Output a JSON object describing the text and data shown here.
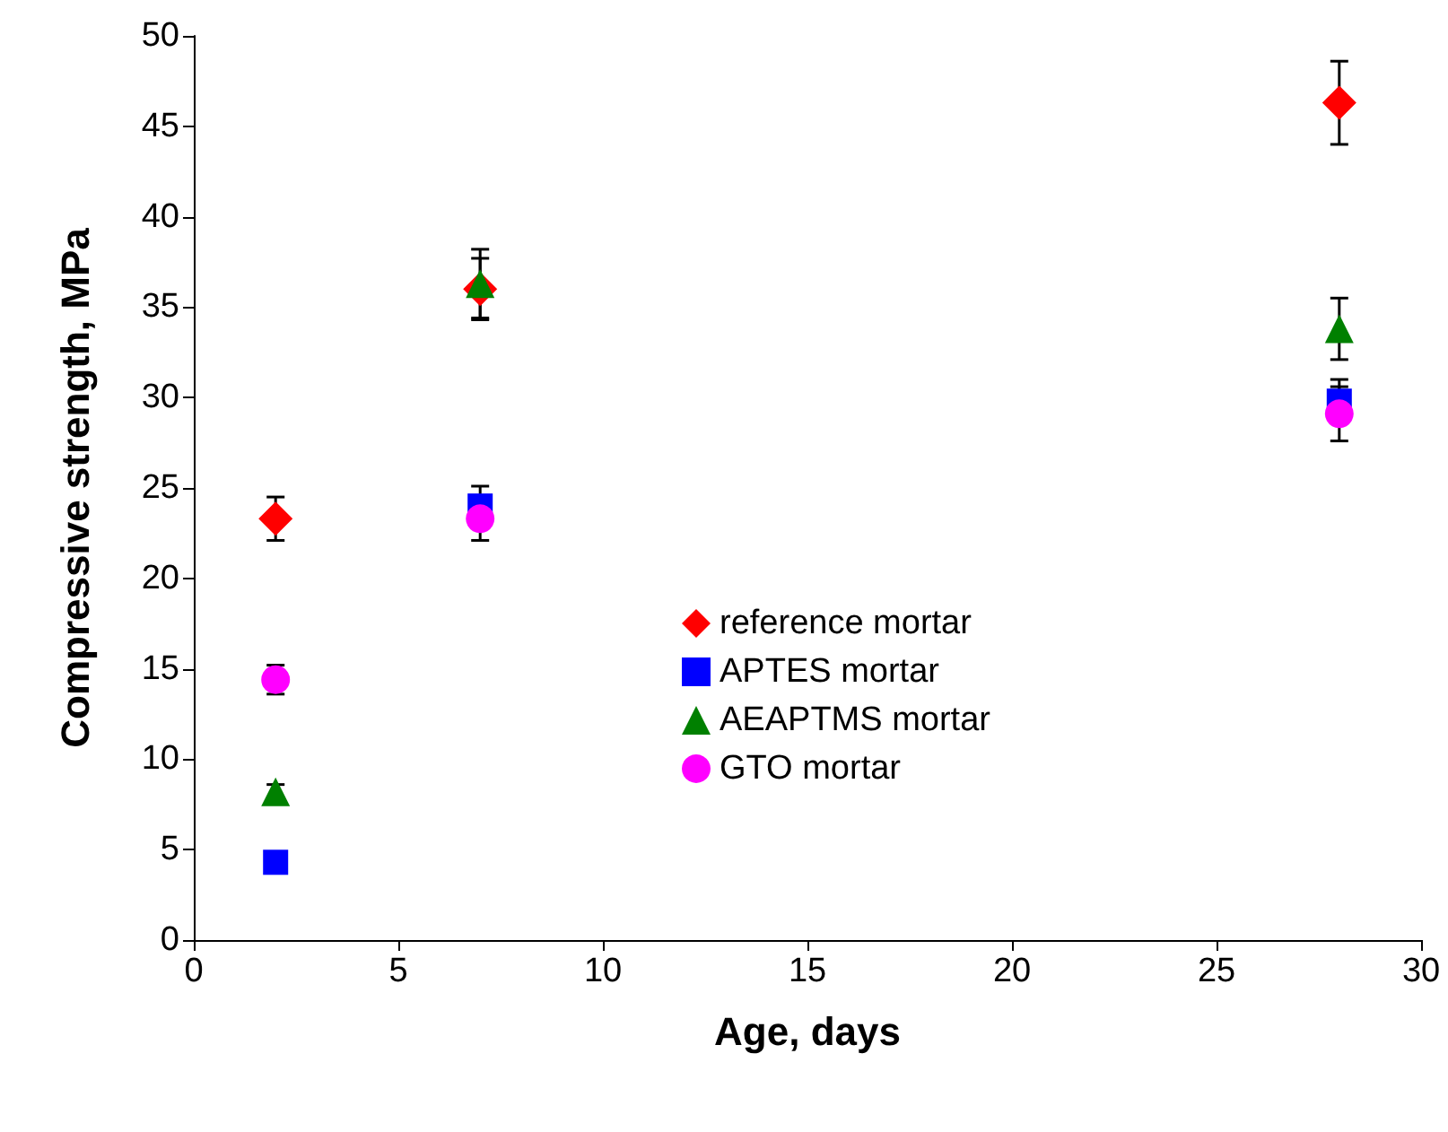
{
  "chart_data": {
    "type": "scatter",
    "xlabel": "Age, days",
    "ylabel": "Compressive strength, MPa",
    "x": [
      2,
      7,
      28
    ],
    "series": [
      {
        "name": "reference mortar",
        "color": "#ff0000",
        "marker": "diamond",
        "values": [
          23.3,
          36.0,
          46.3
        ],
        "errors": [
          1.2,
          1.7,
          2.3
        ]
      },
      {
        "name": "APTES mortar",
        "color": "#0000ff",
        "marker": "square",
        "values": [
          4.3,
          24.0,
          29.8
        ],
        "errors": [
          null,
          1.1,
          1.2
        ]
      },
      {
        "name": "AEAPTMS mortar",
        "color": "#008000",
        "marker": "triangle",
        "values": [
          8.2,
          36.3,
          33.8
        ],
        "errors": [
          0.4,
          1.9,
          1.7
        ]
      },
      {
        "name": "GTO mortar",
        "color": "#ff00ff",
        "marker": "circle",
        "values": [
          14.4,
          23.3,
          29.1
        ],
        "errors": [
          0.8,
          1.2,
          1.5
        ]
      }
    ],
    "xlim": [
      0,
      30
    ],
    "xticks": [
      0,
      5,
      10,
      15,
      20,
      25,
      30
    ],
    "ylim": [
      0,
      50
    ],
    "yticks": [
      0,
      5,
      10,
      15,
      20,
      25,
      30,
      35,
      40,
      45,
      50
    ],
    "grid": false,
    "legend": "center"
  }
}
